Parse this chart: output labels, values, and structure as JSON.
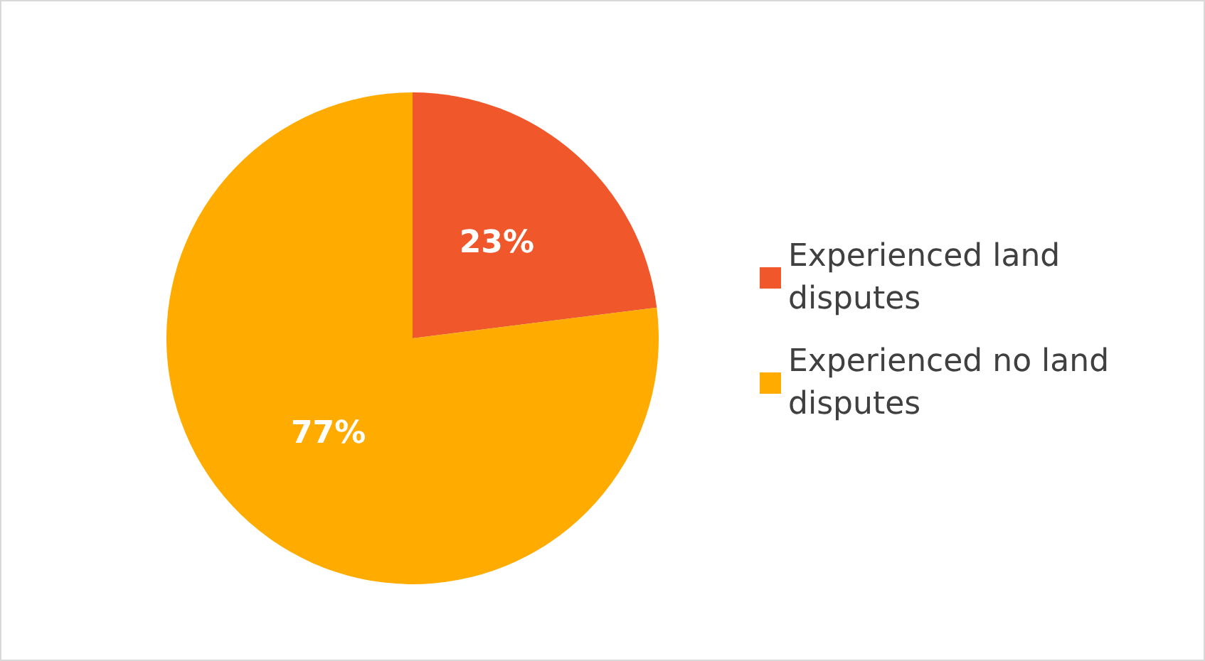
{
  "chart_data": {
    "type": "pie",
    "categories": [
      "Experienced land disputes",
      "Experienced no land disputes"
    ],
    "values": [
      23,
      77
    ],
    "colors": [
      "#f0572b",
      "#ffab00"
    ],
    "value_labels": [
      "23%",
      "77%"
    ],
    "legend": "right"
  }
}
